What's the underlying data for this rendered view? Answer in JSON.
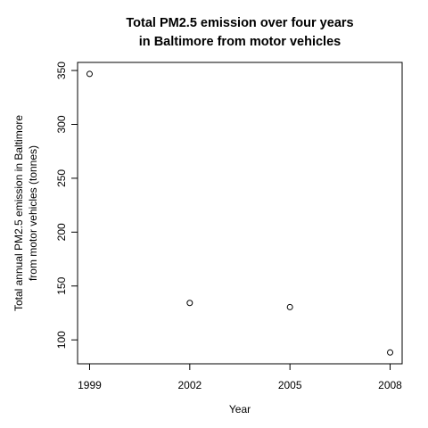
{
  "chart_data": {
    "type": "scatter",
    "title_lines": [
      "Total PM2.5 emission over four years",
      "in Baltimore from motor vehicles"
    ],
    "xlabel": "Year",
    "ylabel_lines": [
      "Total annual PM2.5 emission in Baltimore",
      "from motor vehicles (tonnes)"
    ],
    "x": [
      1999,
      2002,
      2005,
      2008
    ],
    "values": [
      346.8,
      134.3,
      130.4,
      88.3
    ],
    "x_ticks": [
      1999,
      2002,
      2005,
      2008
    ],
    "y_ticks": [
      100,
      150,
      200,
      250,
      300,
      350
    ],
    "xlim": [
      1998.64,
      2008.36
    ],
    "ylim": [
      77.8,
      357.5
    ],
    "grid": false,
    "legend": "none"
  }
}
